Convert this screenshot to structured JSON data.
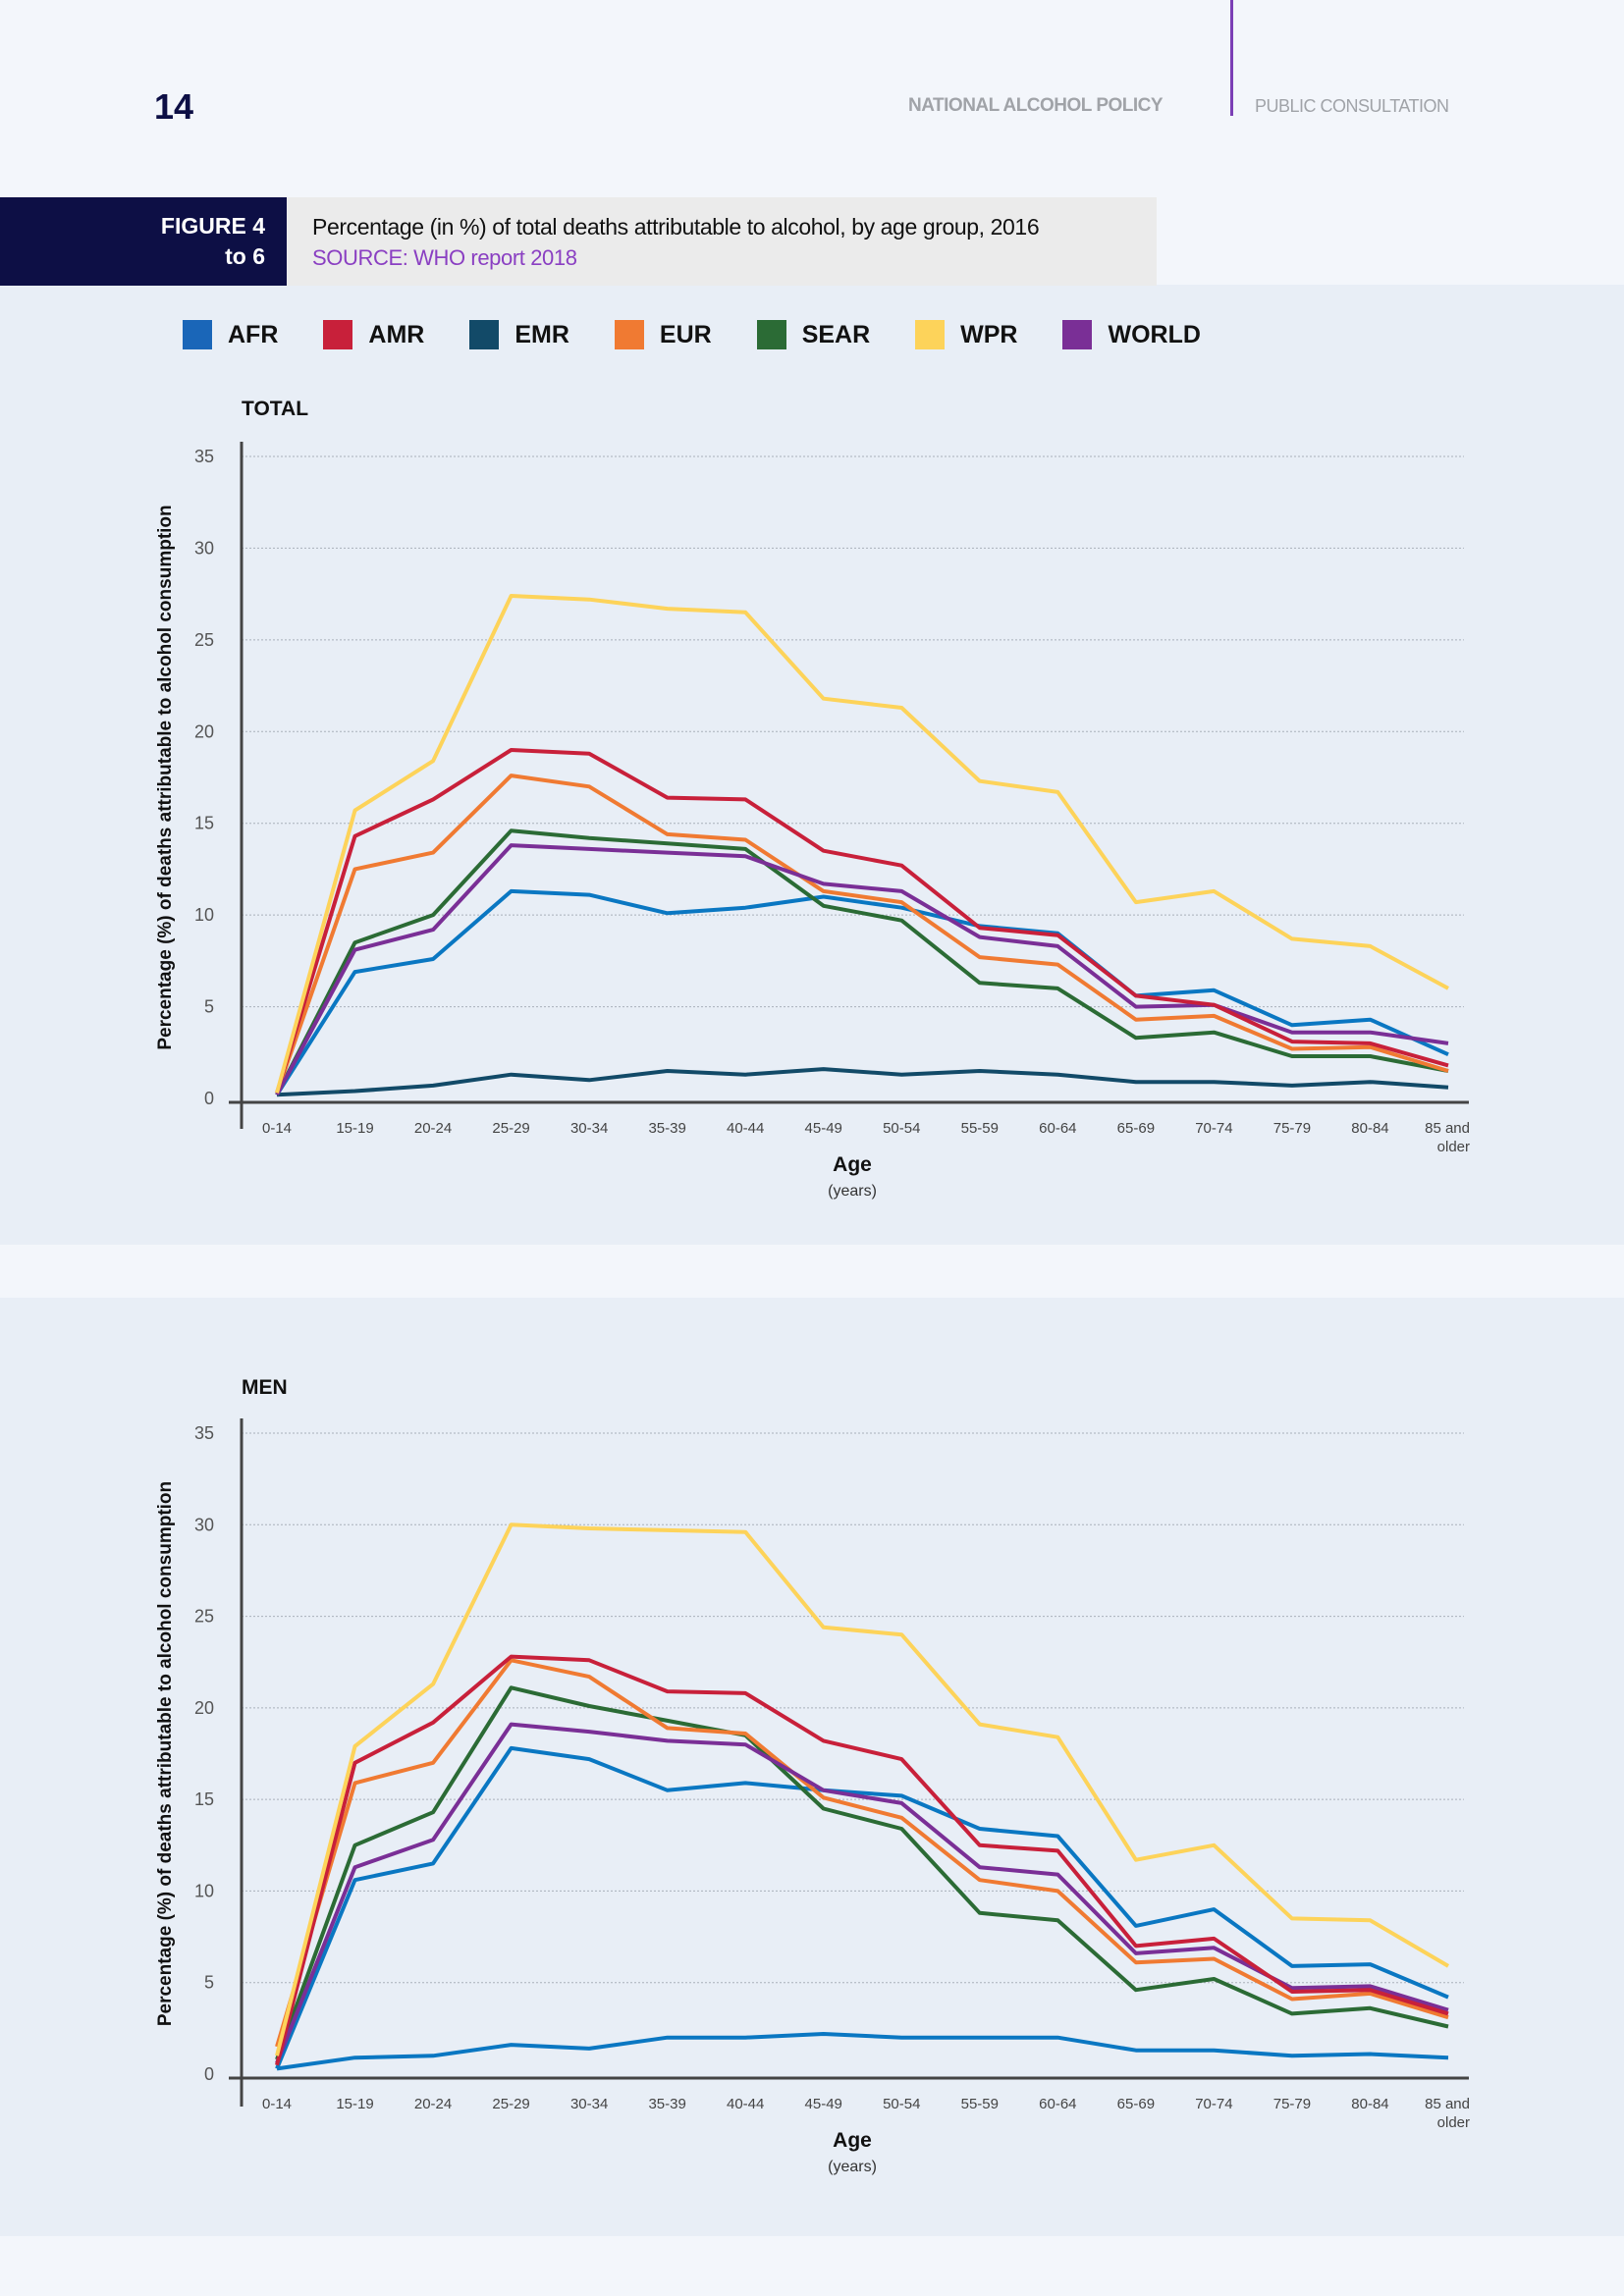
{
  "header": {
    "page_number": "14",
    "doc_title": "NATIONAL ALCOHOL POLICY",
    "doc_subtitle": "PUBLIC CONSULTATION"
  },
  "figure": {
    "label_line1": "FIGURE 4",
    "label_line2": "to 6",
    "title": "Percentage (in %) of total  deaths attributable to alcohol, by age group, 2016",
    "source": "SOURCE: WHO report 2018"
  },
  "legend": [
    {
      "name": "AFR",
      "color": "#1a66b8"
    },
    {
      "name": "AMR",
      "color": "#c8203a"
    },
    {
      "name": "EMR",
      "color": "#124a68"
    },
    {
      "name": "EUR",
      "color": "#f07a32"
    },
    {
      "name": "SEAR",
      "color": "#2b6b35"
    },
    {
      "name": "WPR",
      "color": "#fdd35a"
    },
    {
      "name": "WORLD",
      "color": "#7a2f96"
    }
  ],
  "chart_data": [
    {
      "type": "line",
      "title": "TOTAL",
      "xlabel": "Age",
      "xlabel_sub": "(years)",
      "ylabel": "Percentage (%) of deaths attributable to alcohol consumption",
      "ylim": [
        0,
        35
      ],
      "yticks": [
        0,
        5,
        10,
        15,
        20,
        25,
        30,
        35
      ],
      "grid": true,
      "categories": [
        "0-14",
        "15-19",
        "20-24",
        "25-29",
        "30-34",
        "35-39",
        "40-44",
        "45-49",
        "50-54",
        "55-59",
        "60-64",
        "65-69",
        "70-74",
        "75-79",
        "80-84",
        "85 and older"
      ],
      "series": [
        {
          "name": "EMR",
          "color": "#124a68",
          "values": [
            0.2,
            0.4,
            0.7,
            1.3,
            1.0,
            1.5,
            1.3,
            1.6,
            1.3,
            1.5,
            1.3,
            0.9,
            0.9,
            0.7,
            0.9,
            0.6
          ]
        },
        {
          "name": "AFR",
          "color": "#0a77c2",
          "values": [
            0.2,
            6.9,
            7.6,
            11.3,
            11.1,
            10.1,
            10.4,
            11.0,
            10.4,
            9.4,
            9.0,
            5.6,
            5.9,
            4.0,
            4.3,
            2.4
          ]
        },
        {
          "name": "SEAR",
          "color": "#2b6b35",
          "values": [
            0.2,
            8.5,
            10.0,
            14.6,
            14.2,
            13.9,
            13.6,
            10.5,
            9.7,
            6.3,
            6.0,
            3.3,
            3.6,
            2.3,
            2.3,
            1.5
          ]
        },
        {
          "name": "EUR",
          "color": "#f07a32",
          "values": [
            0.3,
            12.5,
            13.4,
            17.6,
            17.0,
            14.4,
            14.1,
            11.3,
            10.7,
            7.7,
            7.3,
            4.3,
            4.5,
            2.7,
            2.8,
            1.5
          ]
        },
        {
          "name": "WORLD",
          "color": "#7a2f96",
          "values": [
            0.2,
            8.1,
            9.2,
            13.8,
            13.6,
            13.4,
            13.2,
            11.7,
            11.3,
            8.8,
            8.3,
            5.0,
            5.1,
            3.6,
            3.6,
            3.0
          ]
        },
        {
          "name": "AMR",
          "color": "#c8203a",
          "values": [
            0.3,
            14.3,
            16.3,
            19.0,
            18.8,
            16.4,
            16.3,
            13.5,
            12.7,
            9.3,
            8.9,
            5.6,
            5.1,
            3.1,
            3.0,
            1.8
          ]
        },
        {
          "name": "WPR",
          "color": "#fdd35a",
          "values": [
            0.3,
            15.7,
            18.4,
            27.4,
            27.2,
            26.7,
            26.5,
            21.8,
            21.3,
            17.3,
            16.7,
            10.7,
            11.3,
            8.7,
            8.3,
            6.0
          ]
        }
      ]
    },
    {
      "type": "line",
      "title": "MEN",
      "xlabel": "Age",
      "xlabel_sub": "(years)",
      "ylabel": "Percentage (%) of deaths attributable to alcohol consumption",
      "ylim": [
        0,
        35
      ],
      "yticks": [
        0,
        5,
        10,
        15,
        20,
        25,
        30,
        35
      ],
      "grid": true,
      "categories": [
        "0-14",
        "15-19",
        "20-24",
        "25-29",
        "30-34",
        "35-39",
        "40-44",
        "45-49",
        "50-54",
        "55-59",
        "60-64",
        "65-69",
        "70-74",
        "75-79",
        "80-84",
        "85 and older"
      ],
      "series": [
        {
          "name": "EMR",
          "color": "#0a77c2",
          "values": [
            0.3,
            0.9,
            1.0,
            1.6,
            1.4,
            2.0,
            2.0,
            2.2,
            2.0,
            2.0,
            2.0,
            1.3,
            1.3,
            1.0,
            1.1,
            0.9
          ]
        },
        {
          "name": "AFR",
          "color": "#0a77c2",
          "values": [
            0.3,
            10.6,
            11.5,
            17.8,
            17.2,
            15.5,
            15.9,
            15.5,
            15.2,
            13.4,
            13.0,
            8.1,
            9.0,
            5.9,
            6.0,
            4.2
          ]
        },
        {
          "name": "SEAR",
          "color": "#2b6b35",
          "values": [
            0.8,
            12.5,
            14.3,
            21.1,
            20.1,
            19.3,
            18.5,
            14.5,
            13.4,
            8.8,
            8.4,
            4.6,
            5.2,
            3.3,
            3.6,
            2.6
          ]
        },
        {
          "name": "EUR",
          "color": "#f07a32",
          "values": [
            1.5,
            15.9,
            17.0,
            22.6,
            21.7,
            18.9,
            18.6,
            15.1,
            14.0,
            10.6,
            10.0,
            6.1,
            6.3,
            4.1,
            4.4,
            3.1
          ]
        },
        {
          "name": "WORLD",
          "color": "#7a2f96",
          "values": [
            0.6,
            11.3,
            12.8,
            19.1,
            18.7,
            18.2,
            18.0,
            15.5,
            14.8,
            11.3,
            10.9,
            6.6,
            6.9,
            4.7,
            4.8,
            3.5
          ]
        },
        {
          "name": "AMR",
          "color": "#c8203a",
          "values": [
            0.5,
            17.0,
            19.2,
            22.8,
            22.6,
            20.9,
            20.8,
            18.2,
            17.2,
            12.5,
            12.2,
            7.0,
            7.4,
            4.5,
            4.6,
            3.3
          ]
        },
        {
          "name": "WPR",
          "color": "#fdd35a",
          "values": [
            1.0,
            17.9,
            21.3,
            30.0,
            29.8,
            29.7,
            29.6,
            24.4,
            24.0,
            19.1,
            18.4,
            11.7,
            12.5,
            8.5,
            8.4,
            5.9
          ]
        }
      ]
    }
  ]
}
